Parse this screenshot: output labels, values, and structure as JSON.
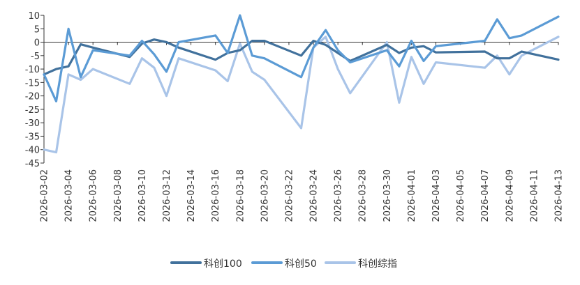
{
  "chart_data": {
    "type": "line",
    "title": "",
    "xlabel": "",
    "ylabel": "",
    "ylim": [
      -45,
      10
    ],
    "yticks": [
      10,
      5,
      0,
      -5,
      -10,
      -15,
      -20,
      -25,
      -30,
      -35,
      -40,
      -45
    ],
    "x_tick_labels": [
      "2026-03-02",
      "2026-03-04",
      "2026-03-06",
      "2026-03-08",
      "2026-03-10",
      "2026-03-12",
      "2026-03-14",
      "2026-03-16",
      "2026-03-18",
      "2026-03-20",
      "2026-03-22",
      "2026-03-24",
      "2026-03-26",
      "2026-03-28",
      "2026-03-30",
      "2026-04-01",
      "2026-04-03",
      "2026-04-05",
      "2026-04-07",
      "2026-04-09",
      "2026-04-11",
      "2026-04-13"
    ],
    "x_range": [
      "2026-03-02",
      "2026-04-13"
    ],
    "grid": false,
    "legend_position": "bottom",
    "series": [
      {
        "name": "科创100",
        "color": "#41719c",
        "points": [
          [
            "2026-03-02",
            -12
          ],
          [
            "2026-03-03",
            -10
          ],
          [
            "2026-03-04",
            -9
          ],
          [
            "2026-03-05",
            -0.8
          ],
          [
            "2026-03-06",
            -2
          ],
          [
            "2026-03-09",
            -5.5
          ],
          [
            "2026-03-10",
            -0.5
          ],
          [
            "2026-03-11",
            1
          ],
          [
            "2026-03-12",
            0
          ],
          [
            "2026-03-13",
            -2
          ],
          [
            "2026-03-16",
            -6.5
          ],
          [
            "2026-03-17",
            -4
          ],
          [
            "2026-03-18",
            -3
          ],
          [
            "2026-03-19",
            0.5
          ],
          [
            "2026-03-20",
            0.5
          ],
          [
            "2026-03-23",
            -5
          ],
          [
            "2026-03-24",
            0.5
          ],
          [
            "2026-03-25",
            -1
          ],
          [
            "2026-03-26",
            -4
          ],
          [
            "2026-03-27",
            -7
          ],
          [
            "2026-03-30",
            -1
          ],
          [
            "2026-03-31",
            -4
          ],
          [
            "2026-04-01",
            -2
          ],
          [
            "2026-04-02",
            -1.5
          ],
          [
            "2026-04-03",
            -3.8
          ],
          [
            "2026-04-07",
            -3.5
          ],
          [
            "2026-04-08",
            -6
          ],
          [
            "2026-04-09",
            -6
          ],
          [
            "2026-04-10",
            -3.5
          ],
          [
            "2026-04-13",
            -6.5
          ]
        ]
      },
      {
        "name": "科创50",
        "color": "#5b9bd5",
        "points": [
          [
            "2026-03-02",
            -12
          ],
          [
            "2026-03-03",
            -22
          ],
          [
            "2026-03-04",
            5
          ],
          [
            "2026-03-05",
            -13
          ],
          [
            "2026-03-06",
            -3
          ],
          [
            "2026-03-09",
            -5
          ],
          [
            "2026-03-10",
            0.5
          ],
          [
            "2026-03-11",
            -4.5
          ],
          [
            "2026-03-12",
            -11
          ],
          [
            "2026-03-13",
            0
          ],
          [
            "2026-03-16",
            2.5
          ],
          [
            "2026-03-17",
            -4
          ],
          [
            "2026-03-18",
            10
          ],
          [
            "2026-03-19",
            -5
          ],
          [
            "2026-03-20",
            -6
          ],
          [
            "2026-03-23",
            -13
          ],
          [
            "2026-03-24",
            -2
          ],
          [
            "2026-03-25",
            4.5
          ],
          [
            "2026-03-26",
            -3
          ],
          [
            "2026-03-27",
            -7.5
          ],
          [
            "2026-03-30",
            -3
          ],
          [
            "2026-03-31",
            -9
          ],
          [
            "2026-04-01",
            0.5
          ],
          [
            "2026-04-02",
            -7
          ],
          [
            "2026-04-03",
            -1.5
          ],
          [
            "2026-04-07",
            0.5
          ],
          [
            "2026-04-08",
            8.5
          ],
          [
            "2026-04-09",
            1.5
          ],
          [
            "2026-04-10",
            2.5
          ],
          [
            "2026-04-13",
            9.5
          ]
        ]
      },
      {
        "name": "科创综指",
        "color": "#a9c4e8",
        "points": [
          [
            "2026-03-02",
            -40
          ],
          [
            "2026-03-03",
            -41
          ],
          [
            "2026-03-04",
            -12
          ],
          [
            "2026-03-05",
            -14
          ],
          [
            "2026-03-06",
            -10
          ],
          [
            "2026-03-09",
            -15.5
          ],
          [
            "2026-03-10",
            -6
          ],
          [
            "2026-03-11",
            -9.5
          ],
          [
            "2026-03-12",
            -20
          ],
          [
            "2026-03-13",
            -6
          ],
          [
            "2026-03-16",
            -10.5
          ],
          [
            "2026-03-17",
            -14.5
          ],
          [
            "2026-03-18",
            -0.5
          ],
          [
            "2026-03-19",
            -11
          ],
          [
            "2026-03-20",
            -14
          ],
          [
            "2026-03-23",
            -32
          ],
          [
            "2026-03-24",
            -2
          ],
          [
            "2026-03-25",
            2
          ],
          [
            "2026-03-26",
            -10
          ],
          [
            "2026-03-27",
            -19
          ],
          [
            "2026-03-30",
            0
          ],
          [
            "2026-03-31",
            -22.5
          ],
          [
            "2026-04-01",
            -5.5
          ],
          [
            "2026-04-02",
            -15.5
          ],
          [
            "2026-04-03",
            -7.5
          ],
          [
            "2026-04-07",
            -9.5
          ],
          [
            "2026-04-08",
            -5
          ],
          [
            "2026-04-09",
            -12
          ],
          [
            "2026-04-10",
            -5
          ],
          [
            "2026-04-13",
            2
          ]
        ]
      }
    ]
  }
}
